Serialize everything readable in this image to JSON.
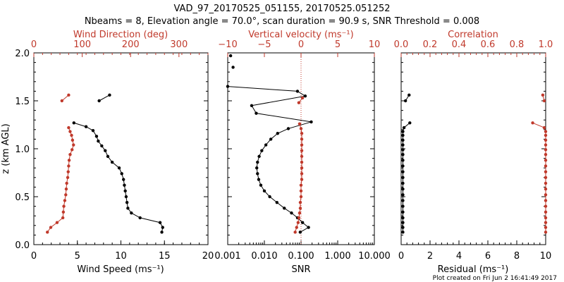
{
  "title_line1": "VAD_97_20170525_051155, 20170525.051252",
  "title_line2": "Nbeams = 8, Elevation angle = 70.0°, scan duration = 90.9 s, SNR Threshold = 0.008",
  "footer": "Plot created on Fri Jun  2 16:41:49 2017",
  "colors": {
    "black": "#000000",
    "red": "#c0392b"
  },
  "chart_data": [
    {
      "type": "line",
      "name": "wind-panel",
      "ylabel": "z (km AGL)",
      "ylim": [
        0.0,
        2.0
      ],
      "y_ticks": [
        "0.0",
        "0.5",
        "1.0",
        "1.5",
        "2.0"
      ],
      "xlabel_bottom": "Wind Speed (ms⁻¹)",
      "xlim_bottom": [
        0,
        20
      ],
      "x_ticks_bottom": [
        "0",
        "5",
        "10",
        "15",
        "20"
      ],
      "xlabel_top": "Wind Direction (deg)",
      "xlim_top": [
        0,
        360
      ],
      "x_ticks_top": [
        "0",
        "100",
        "200",
        "300"
      ],
      "series": [
        {
          "axis": "bottom",
          "color": "#000000",
          "segments": [
            [
              [
                14.7,
                0.13
              ],
              [
                14.8,
                0.18
              ],
              [
                14.5,
                0.23
              ],
              [
                12.2,
                0.28
              ],
              [
                11.2,
                0.33
              ],
              [
                10.8,
                0.38
              ],
              [
                10.7,
                0.44
              ],
              [
                10.6,
                0.5
              ],
              [
                10.5,
                0.56
              ],
              [
                10.4,
                0.62
              ],
              [
                10.3,
                0.68
              ],
              [
                10.1,
                0.74
              ],
              [
                9.8,
                0.8
              ],
              [
                9.0,
                0.86
              ],
              [
                8.5,
                0.92
              ],
              [
                8.2,
                0.98
              ],
              [
                7.8,
                1.03
              ],
              [
                7.4,
                1.08
              ],
              [
                7.2,
                1.13
              ],
              [
                6.8,
                1.19
              ],
              [
                6.0,
                1.23
              ],
              [
                4.6,
                1.27
              ]
            ],
            [
              [
                7.5,
                1.5
              ],
              [
                8.7,
                1.56
              ]
            ]
          ]
        },
        {
          "axis": "top",
          "color": "#c0392b",
          "segments": [
            [
              [
                28,
                0.13
              ],
              [
                35,
                0.18
              ],
              [
                48,
                0.23
              ],
              [
                60,
                0.28
              ],
              [
                61,
                0.34
              ],
              [
                62,
                0.4
              ],
              [
                64,
                0.46
              ],
              [
                66,
                0.52
              ],
              [
                67,
                0.58
              ],
              [
                68,
                0.64
              ],
              [
                70,
                0.7
              ],
              [
                71,
                0.76
              ],
              [
                72,
                0.82
              ],
              [
                73,
                0.88
              ],
              [
                75,
                0.94
              ],
              [
                79,
                0.99
              ],
              [
                82,
                1.04
              ],
              [
                80,
                1.09
              ],
              [
                78,
                1.14
              ],
              [
                75,
                1.18
              ],
              [
                72,
                1.22
              ]
            ],
            [
              [
                58,
                1.5
              ],
              [
                72,
                1.56
              ]
            ]
          ]
        }
      ]
    },
    {
      "type": "line",
      "name": "snr-panel",
      "xlabel_bottom": "SNR",
      "xscale_bottom": "log",
      "xlim_bottom": [
        0.001,
        10.0
      ],
      "x_ticks_bottom": [
        "0.001",
        "0.010",
        "0.100",
        "1.000",
        "10.000"
      ],
      "xlabel_top": "Vertical velocity (ms⁻¹)",
      "xlim_top": [
        -10,
        10
      ],
      "x_ticks_top": [
        "−10",
        "−5",
        "0",
        "5",
        "10"
      ],
      "ylim": [
        0.0,
        2.0
      ],
      "series": [
        {
          "axis": "bottom",
          "color": "#000000",
          "segments": [
            [
              [
                0.095,
                0.13
              ],
              [
                0.16,
                0.18
              ],
              [
                0.11,
                0.23
              ],
              [
                0.08,
                0.28
              ],
              [
                0.055,
                0.33
              ],
              [
                0.035,
                0.38
              ],
              [
                0.022,
                0.44
              ],
              [
                0.014,
                0.5
              ],
              [
                0.01,
                0.56
              ],
              [
                0.008,
                0.62
              ],
              [
                0.007,
                0.68
              ],
              [
                0.0065,
                0.74
              ],
              [
                0.0062,
                0.8
              ],
              [
                0.0065,
                0.86
              ],
              [
                0.0072,
                0.92
              ],
              [
                0.0085,
                0.98
              ],
              [
                0.011,
                1.04
              ],
              [
                0.015,
                1.1
              ],
              [
                0.023,
                1.16
              ],
              [
                0.045,
                1.21
              ],
              [
                0.19,
                1.28
              ],
              [
                0.006,
                1.37
              ],
              [
                0.0045,
                1.45
              ],
              [
                0.13,
                1.55
              ],
              [
                0.08,
                1.6
              ],
              [
                0.001,
                1.65
              ]
            ],
            [
              [
                0.0012,
                1.97
              ]
            ],
            [
              [
                0.0014,
                1.85
              ]
            ]
          ]
        },
        {
          "axis": "top",
          "color": "#c0392b",
          "segments": [
            [
              [
                -0.8,
                0.13
              ],
              [
                -0.6,
                0.18
              ],
              [
                -0.4,
                0.23
              ],
              [
                -0.3,
                0.28
              ],
              [
                -0.2,
                0.33
              ],
              [
                -0.1,
                0.38
              ],
              [
                -0.1,
                0.44
              ],
              [
                0.0,
                0.5
              ],
              [
                0.0,
                0.56
              ],
              [
                0.0,
                0.62
              ],
              [
                0.1,
                0.68
              ],
              [
                0.1,
                0.74
              ],
              [
                0.1,
                0.8
              ],
              [
                0.1,
                0.86
              ],
              [
                0.1,
                0.92
              ],
              [
                0.1,
                0.98
              ],
              [
                0.1,
                1.04
              ],
              [
                0.1,
                1.1
              ],
              [
                0.1,
                1.16
              ],
              [
                0.0,
                1.21
              ],
              [
                -0.2,
                1.26
              ]
            ],
            [
              [
                -0.3,
                1.48
              ],
              [
                0.2,
                1.53
              ]
            ]
          ]
        }
      ],
      "reference_line": {
        "axis": "top",
        "x": 0,
        "style": "dotted",
        "color": "#c0392b"
      }
    },
    {
      "type": "line",
      "name": "residual-panel",
      "xlabel_bottom": "Residual (ms⁻¹)",
      "xlim_bottom": [
        0,
        10
      ],
      "x_ticks_bottom": [
        "0",
        "2",
        "4",
        "6",
        "8",
        "10"
      ],
      "xlabel_top": "Correlation",
      "xlim_top": [
        0.0,
        1.0
      ],
      "x_ticks_top": [
        "0.0",
        "0.2",
        "0.4",
        "0.6",
        "0.8",
        "1.0"
      ],
      "ylim": [
        0.0,
        2.0
      ],
      "series": [
        {
          "axis": "bottom",
          "color": "#000000",
          "segments": [
            [
              [
                0.12,
                0.13
              ],
              [
                0.12,
                0.18
              ],
              [
                0.12,
                0.23
              ],
              [
                0.12,
                0.28
              ],
              [
                0.12,
                0.34
              ],
              [
                0.12,
                0.4
              ],
              [
                0.12,
                0.46
              ],
              [
                0.12,
                0.52
              ],
              [
                0.12,
                0.58
              ],
              [
                0.12,
                0.64
              ],
              [
                0.12,
                0.7
              ],
              [
                0.12,
                0.76
              ],
              [
                0.12,
                0.82
              ],
              [
                0.12,
                0.88
              ],
              [
                0.12,
                0.94
              ],
              [
                0.12,
                0.99
              ],
              [
                0.12,
                1.04
              ],
              [
                0.12,
                1.09
              ],
              [
                0.12,
                1.14
              ],
              [
                0.12,
                1.18
              ],
              [
                0.2,
                1.22
              ],
              [
                0.6,
                1.27
              ]
            ],
            [
              [
                0.3,
                1.5
              ],
              [
                0.55,
                1.56
              ]
            ]
          ]
        },
        {
          "axis": "top",
          "color": "#c0392b",
          "segments": [
            [
              [
                1.0,
                0.13
              ],
              [
                1.0,
                0.18
              ],
              [
                1.0,
                0.23
              ],
              [
                1.0,
                0.28
              ],
              [
                1.0,
                0.34
              ],
              [
                1.0,
                0.4
              ],
              [
                1.0,
                0.46
              ],
              [
                1.0,
                0.52
              ],
              [
                1.0,
                0.58
              ],
              [
                1.0,
                0.64
              ],
              [
                1.0,
                0.7
              ],
              [
                1.0,
                0.76
              ],
              [
                1.0,
                0.82
              ],
              [
                1.0,
                0.88
              ],
              [
                1.0,
                0.94
              ],
              [
                1.0,
                0.99
              ],
              [
                1.0,
                1.04
              ],
              [
                1.0,
                1.09
              ],
              [
                1.0,
                1.14
              ],
              [
                1.0,
                1.18
              ],
              [
                0.99,
                1.22
              ],
              [
                0.91,
                1.27
              ]
            ],
            [
              [
                0.99,
                1.5
              ],
              [
                0.98,
                1.56
              ]
            ]
          ]
        }
      ]
    }
  ]
}
